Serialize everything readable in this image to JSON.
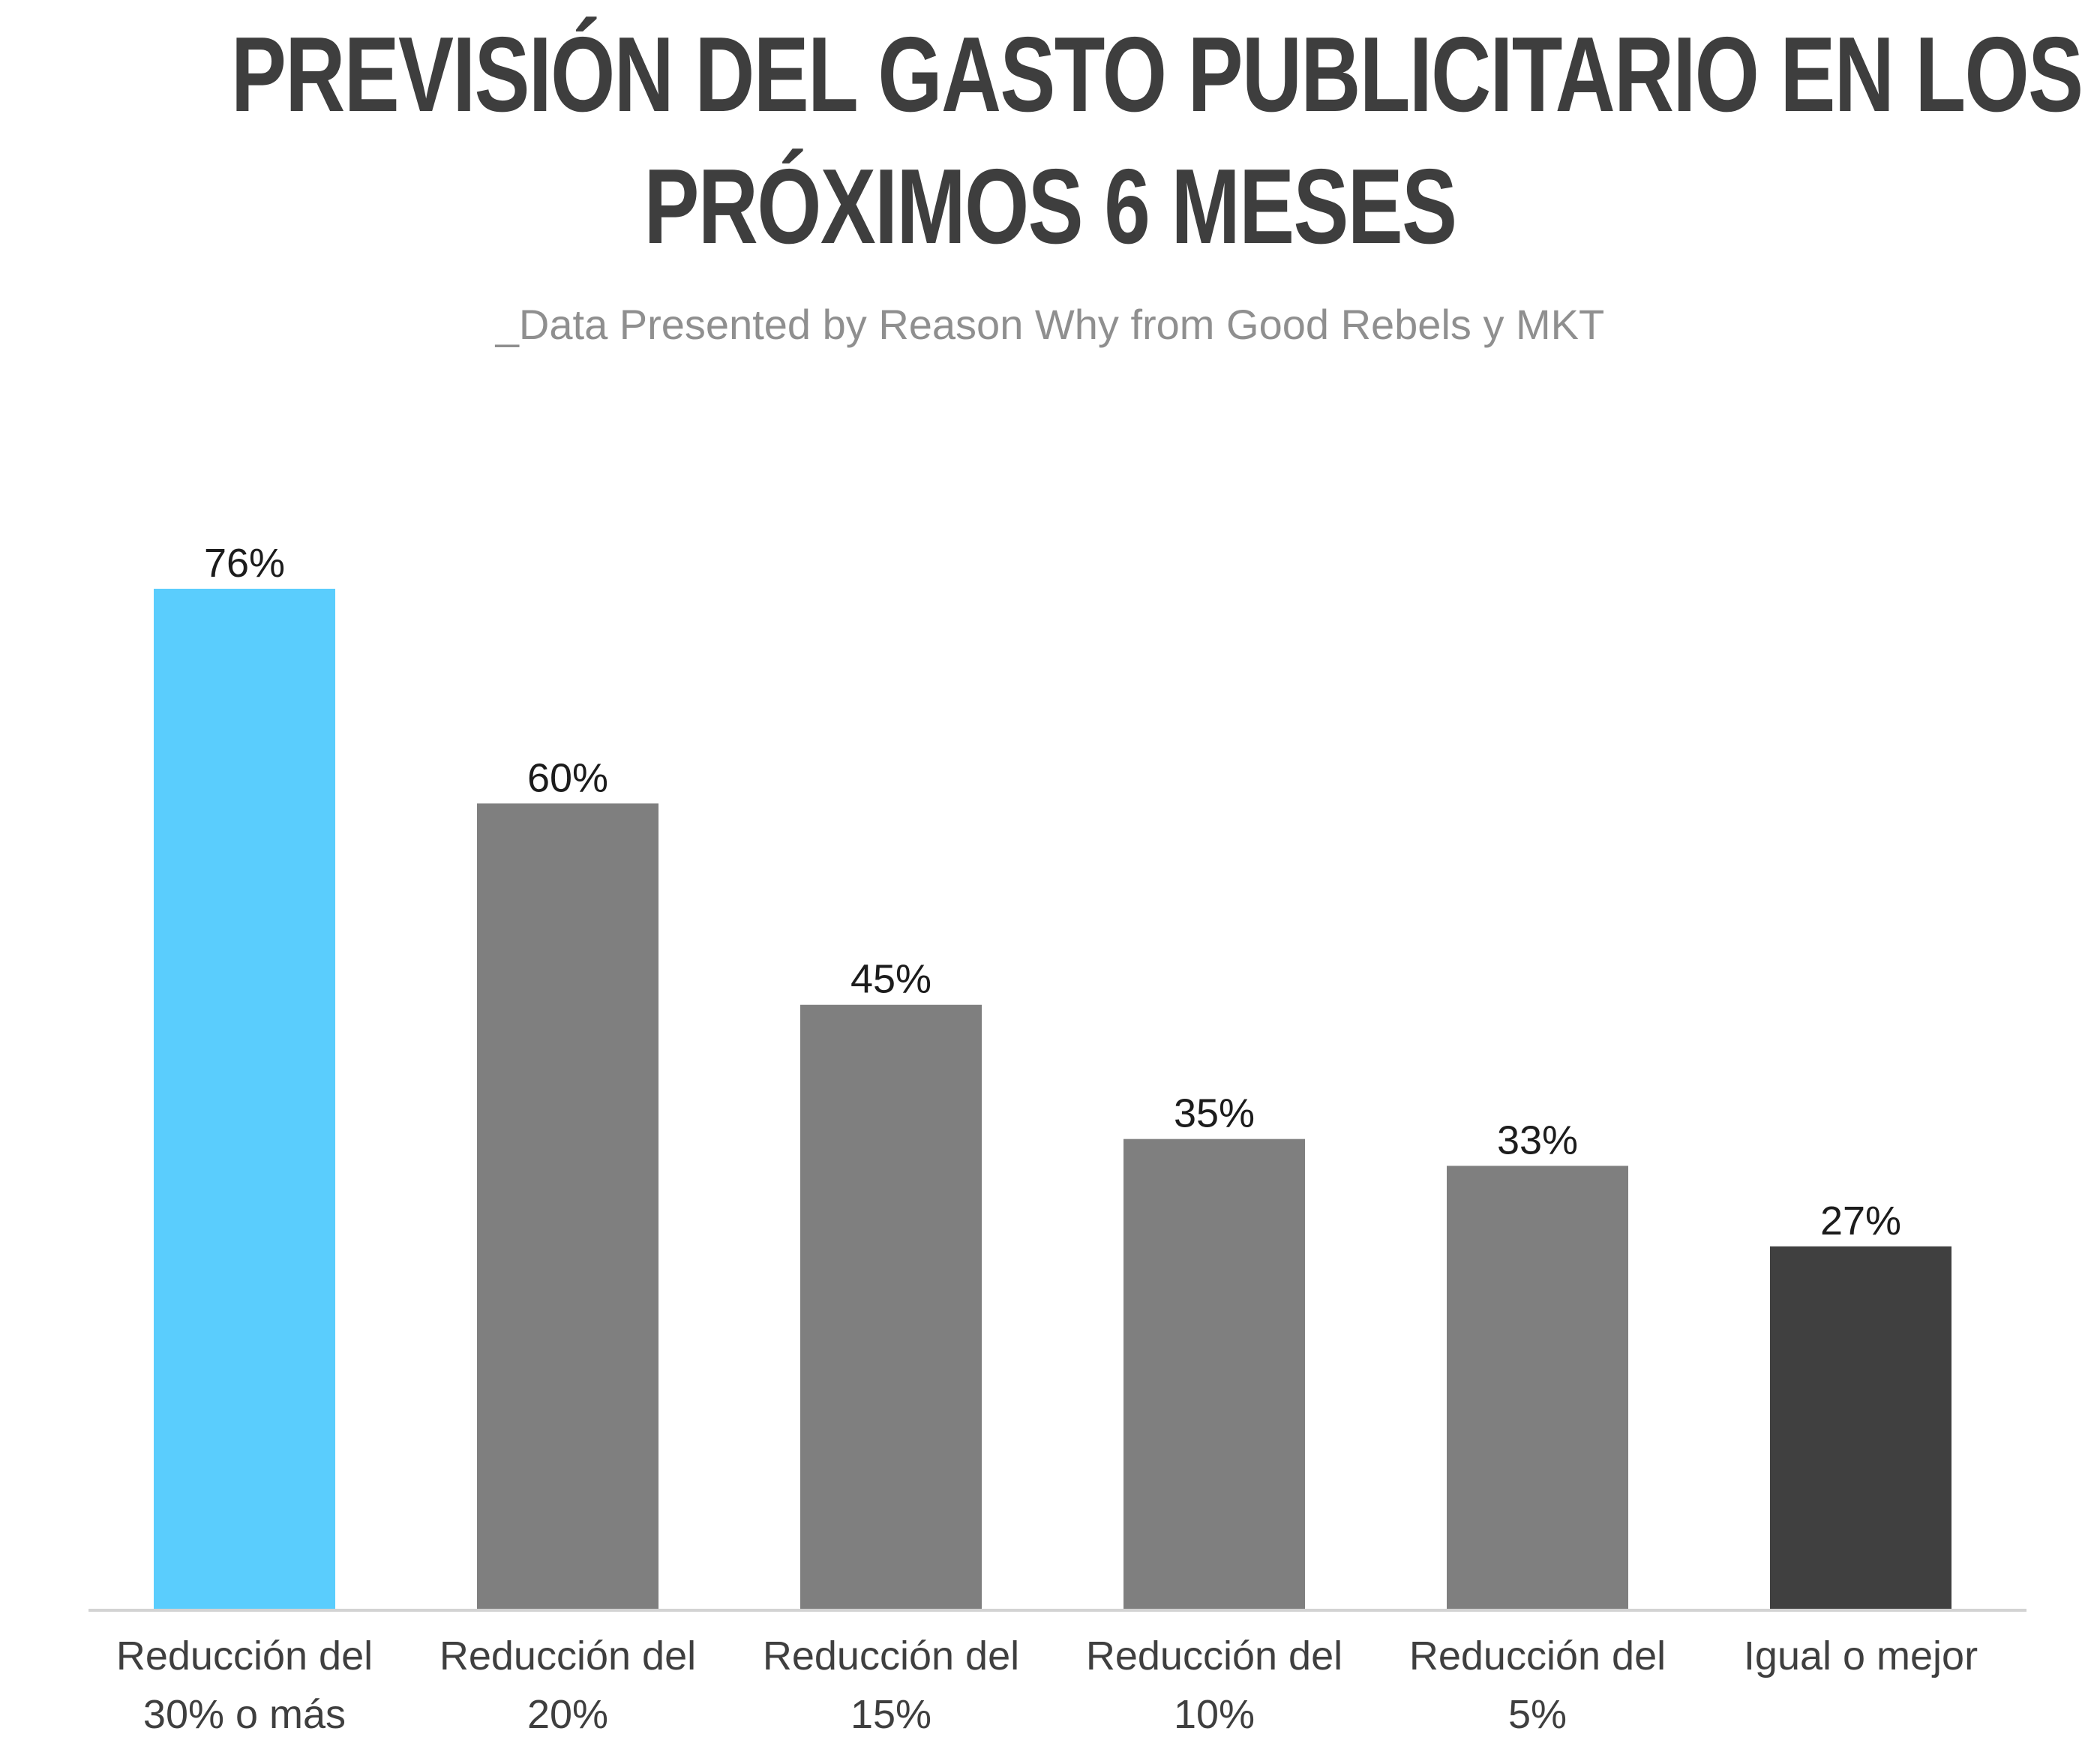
{
  "title_lines": [
    "PREVISIÓN DEL GASTO PUBLICITARIO EN LOS",
    "PRÓXIMOS 6 MESES"
  ],
  "subtitle": "_Data Presented by Reason Why from Good Rebels y MKT",
  "chart_data": {
    "type": "bar",
    "title": "PREVISIÓN DEL GASTO PUBLICITARIO EN LOS PRÓXIMOS 6 MESES",
    "subtitle": "_Data Presented by Reason Why from Good Rebels y MKT",
    "categories": [
      [
        "Reducción del",
        "30% o más"
      ],
      [
        "Reducción del",
        "20%"
      ],
      [
        "Reducción del",
        "15%"
      ],
      [
        "Reducción del",
        "10%"
      ],
      [
        "Reducción del",
        "5%"
      ],
      [
        "Igual o mejor"
      ]
    ],
    "values": [
      76,
      60,
      45,
      35,
      33,
      27
    ],
    "value_labels": [
      "76%",
      "60%",
      "45%",
      "35%",
      "33%",
      "27%"
    ],
    "colors": [
      "#5acdfd",
      "#7f7f7f",
      "#7f7f7f",
      "#7f7f7f",
      "#7f7f7f",
      "#404040"
    ],
    "ylim": [
      0,
      76
    ],
    "grid": false,
    "legend": "none",
    "xlabel": "",
    "ylabel": ""
  }
}
